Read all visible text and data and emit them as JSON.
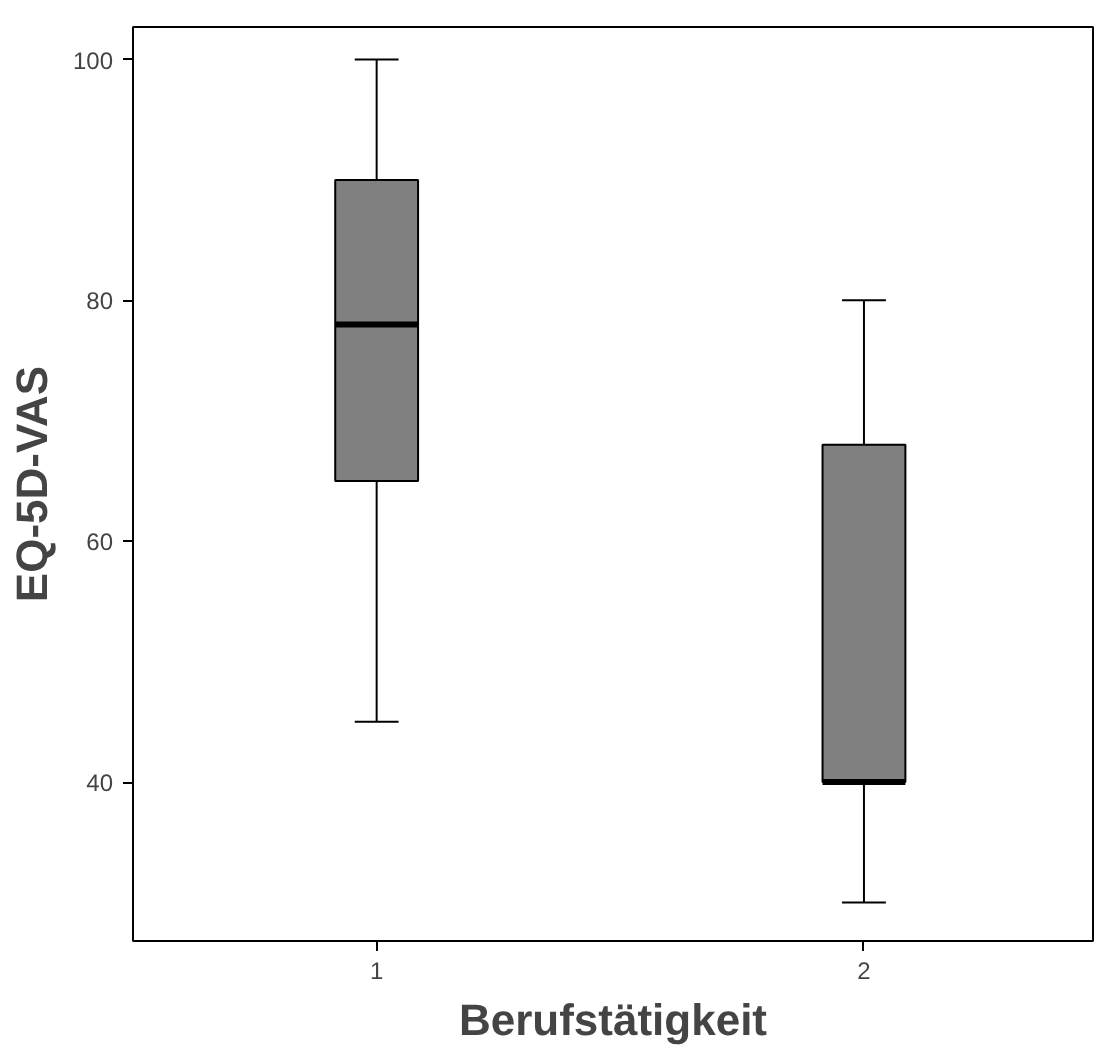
{
  "chart_data": {
    "type": "box",
    "xlabel": "Berufstätigkeit",
    "ylabel": "EQ-5D-VAS",
    "categories": [
      "1",
      "2"
    ],
    "color": "#808080",
    "boxes": [
      {
        "low": 45,
        "q1": 65,
        "median": 78,
        "q3": 90,
        "high": 100
      },
      {
        "low": 30,
        "q1": 40,
        "median": 40,
        "q3": 68,
        "high": 80
      }
    ],
    "ylim": [
      26.8,
      102.7
    ],
    "yticks": [
      40,
      60,
      80,
      100
    ],
    "grid": false
  }
}
